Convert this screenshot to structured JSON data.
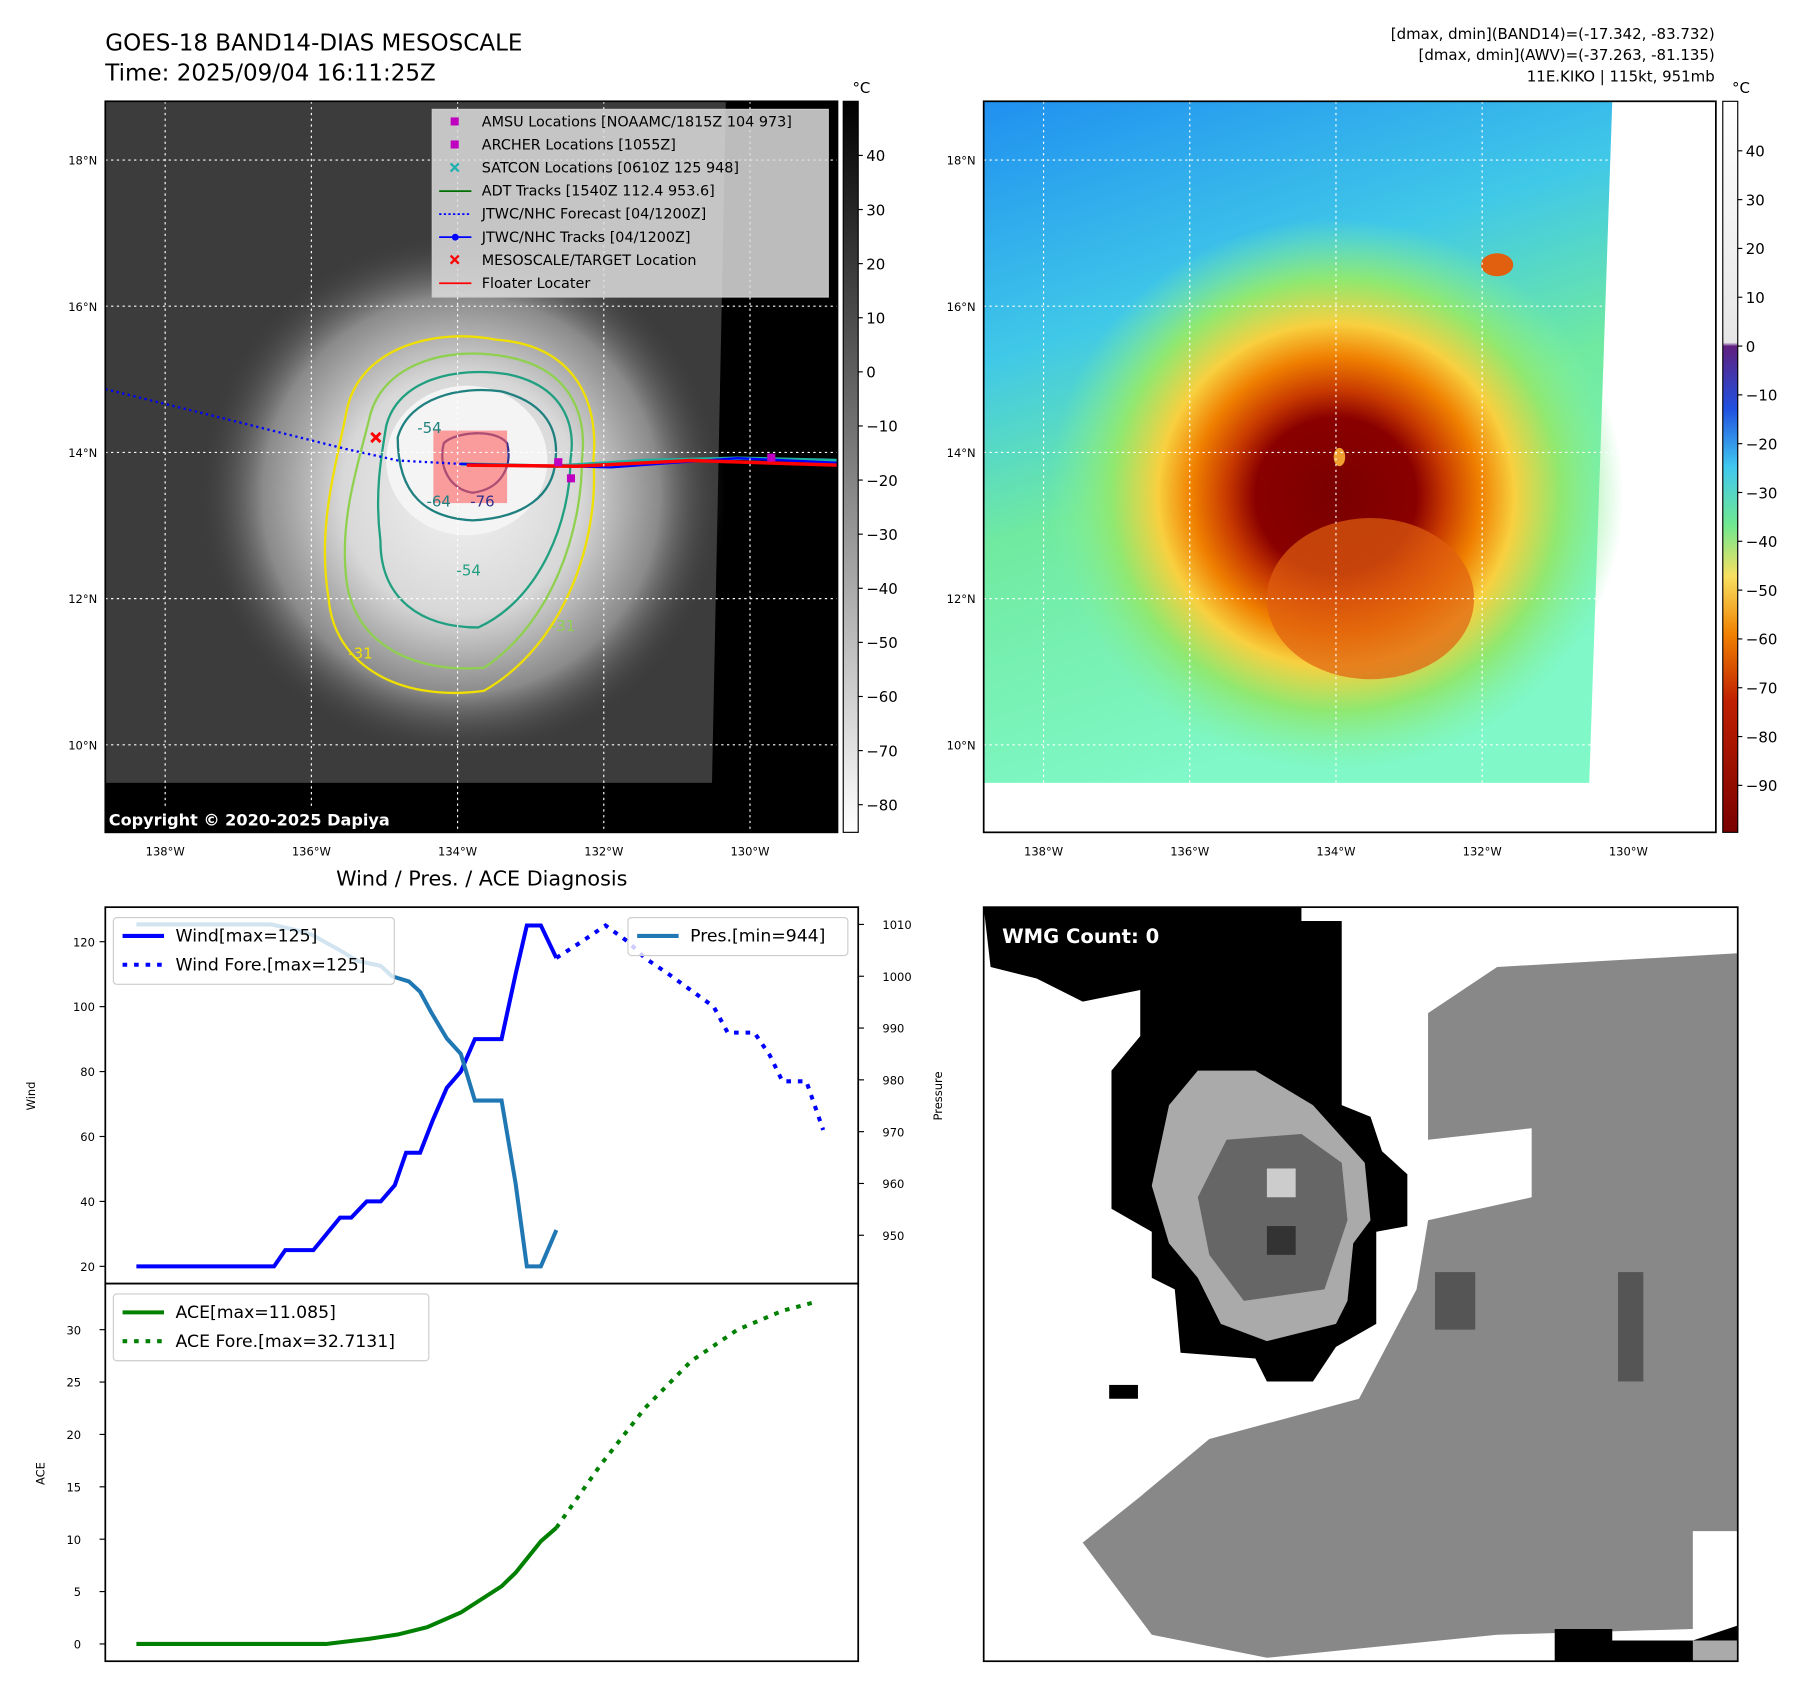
{
  "header": {
    "title": "GOES-18 BAND14-DIAS MESOSCALE",
    "time": "Time: 2025/09/04 16:11:25Z",
    "info_line1": "[dmax, dmin](BAND14)=(-17.342, -83.732)",
    "info_line2": "[dmax, dmin](AWV)=(-37.263, -81.135)",
    "info_line3": "11E.KIKO | 115kt, 951mb"
  },
  "map": {
    "lat_labels": [
      "18°N",
      "16°N",
      "14°N",
      "12°N",
      "10°N"
    ],
    "lon_labels": [
      "138°W",
      "136°W",
      "134°W",
      "132°W",
      "130°W"
    ],
    "copyright": "Copyright © 2020-2025 Dapiya",
    "contour_labels": [
      "-54",
      "-64",
      "-76",
      "-54",
      "-31",
      "-31"
    ],
    "legend": [
      {
        "label": "AMSU Locations [NOAAMC/1815Z 104 973]",
        "marker": "square",
        "color": "#c000c0"
      },
      {
        "label": "ARCHER Locations [1055Z]",
        "marker": "square",
        "color": "#c000c0"
      },
      {
        "label": "SATCON Locations [0610Z 125 948]",
        "marker": "x",
        "color": "#20b0b0"
      },
      {
        "label": "ADT Tracks [1540Z 112.4 953.6]",
        "marker": "line",
        "color": "#007000"
      },
      {
        "label": "JTWC/NHC Forecast [04/1200Z]",
        "marker": "dotted",
        "color": "#0000ff"
      },
      {
        "label": "JTWC/NHC Tracks [04/1200Z]",
        "marker": "line-dot",
        "color": "#0000ff"
      },
      {
        "label": "MESOSCALE/TARGET Location",
        "marker": "x",
        "color": "#ff0000"
      },
      {
        "label": "Floater Locater",
        "marker": "line",
        "color": "#ff0000"
      }
    ]
  },
  "colorbar_band14": {
    "unit": "°C",
    "ticks": [
      "40",
      "30",
      "20",
      "10",
      "0",
      "−10",
      "−20",
      "−30",
      "−40",
      "−50",
      "−60",
      "−70",
      "−80"
    ]
  },
  "colorbar_awv": {
    "unit": "°C",
    "ticks": [
      "40",
      "30",
      "20",
      "10",
      "0",
      "−10",
      "−20",
      "−30",
      "−40",
      "−50",
      "−60",
      "−70",
      "−80",
      "−90"
    ]
  },
  "wmg": {
    "label": "WMG Count: 0"
  },
  "chart_data": {
    "type": "line",
    "title": "Wind / Pres. / ACE Diagnosis",
    "xlim": [
      -1,
      50
    ],
    "panels": [
      {
        "name": "wind-pressure",
        "ylabel": "Wind",
        "ylabel_right": "Pressure",
        "ylim": [
          16,
          130
        ],
        "yticks": [
          20,
          40,
          60,
          80,
          100,
          120
        ],
        "ylim_right": [
          943,
          1011
        ],
        "yticks_right": [
          950,
          960,
          970,
          980,
          990,
          1000,
          1010
        ],
        "series": [
          {
            "name": "Wind[max=125]",
            "axis": "left",
            "style": "solid",
            "color": "#0000ff",
            "points": [
              [
                0,
                20
              ],
              [
                9.8,
                20
              ],
              [
                10.6,
                25
              ],
              [
                12.6,
                25
              ],
              [
                14.5,
                35
              ],
              [
                15.3,
                35
              ],
              [
                16.4,
                40
              ],
              [
                17.4,
                40
              ],
              [
                18.4,
                45
              ],
              [
                19.2,
                55
              ],
              [
                20.2,
                55
              ],
              [
                21.1,
                65
              ],
              [
                22.1,
                75
              ],
              [
                23.1,
                80
              ],
              [
                24.1,
                90
              ],
              [
                26,
                90
              ],
              [
                27,
                110
              ],
              [
                27.8,
                125
              ],
              [
                28.8,
                125
              ],
              [
                29.9,
                115
              ]
            ]
          },
          {
            "name": "Wind Fore.[max=125]",
            "axis": "left",
            "style": "dotted",
            "color": "#0000ff",
            "points": [
              [
                29.9,
                115
              ],
              [
                31.7,
                120
              ],
              [
                33.4,
                125
              ],
              [
                35,
                120
              ],
              [
                36.2,
                115
              ],
              [
                37.9,
                110
              ],
              [
                39.5,
                105
              ],
              [
                41.1,
                100
              ],
              [
                42.1,
                92
              ],
              [
                44,
                92
              ],
              [
                45.1,
                85
              ],
              [
                46,
                77
              ],
              [
                47.7,
                77
              ],
              [
                48.9,
                62
              ]
            ]
          },
          {
            "name": "Pres.[min=944]",
            "axis": "right",
            "style": "solid",
            "color": "#1f77b4",
            "points": [
              [
                0,
                1010
              ],
              [
                9.6,
                1010
              ],
              [
                11.2,
                1009
              ],
              [
                12.5,
                1008
              ],
              [
                14.5,
                1005
              ],
              [
                15.7,
                1003
              ],
              [
                17.4,
                1002
              ],
              [
                18.2,
                1000
              ],
              [
                19.4,
                999
              ],
              [
                20.2,
                997
              ],
              [
                21,
                993
              ],
              [
                22.1,
                988
              ],
              [
                23.1,
                985
              ],
              [
                24.1,
                976
              ],
              [
                26,
                976
              ],
              [
                27,
                960
              ],
              [
                27.8,
                944
              ],
              [
                28.8,
                944
              ],
              [
                29.9,
                951
              ]
            ]
          }
        ]
      },
      {
        "name": "ace",
        "ylabel": "ACE",
        "ylim": [
          -1.5,
          34.5
        ],
        "yticks": [
          0,
          5,
          10,
          15,
          20,
          25,
          30
        ],
        "series": [
          {
            "name": "ACE[max=11.085]",
            "style": "solid",
            "color": "#008000",
            "points": [
              [
                0,
                0
              ],
              [
                13.5,
                0
              ],
              [
                16.6,
                0.5
              ],
              [
                18.6,
                0.9
              ],
              [
                20.7,
                1.6
              ],
              [
                23.1,
                3
              ],
              [
                26,
                5.5
              ],
              [
                27,
                6.8
              ],
              [
                28.8,
                9.8
              ],
              [
                29.9,
                11.085
              ]
            ]
          },
          {
            "name": "ACE Fore.[max=32.7131]",
            "style": "dotted",
            "color": "#008000",
            "points": [
              [
                29.9,
                11.085
              ],
              [
                33,
                17
              ],
              [
                36.2,
                22.5
              ],
              [
                39.5,
                27
              ],
              [
                42.8,
                30
              ],
              [
                46,
                31.8
              ],
              [
                48.5,
                32.7
              ]
            ]
          }
        ]
      }
    ]
  }
}
